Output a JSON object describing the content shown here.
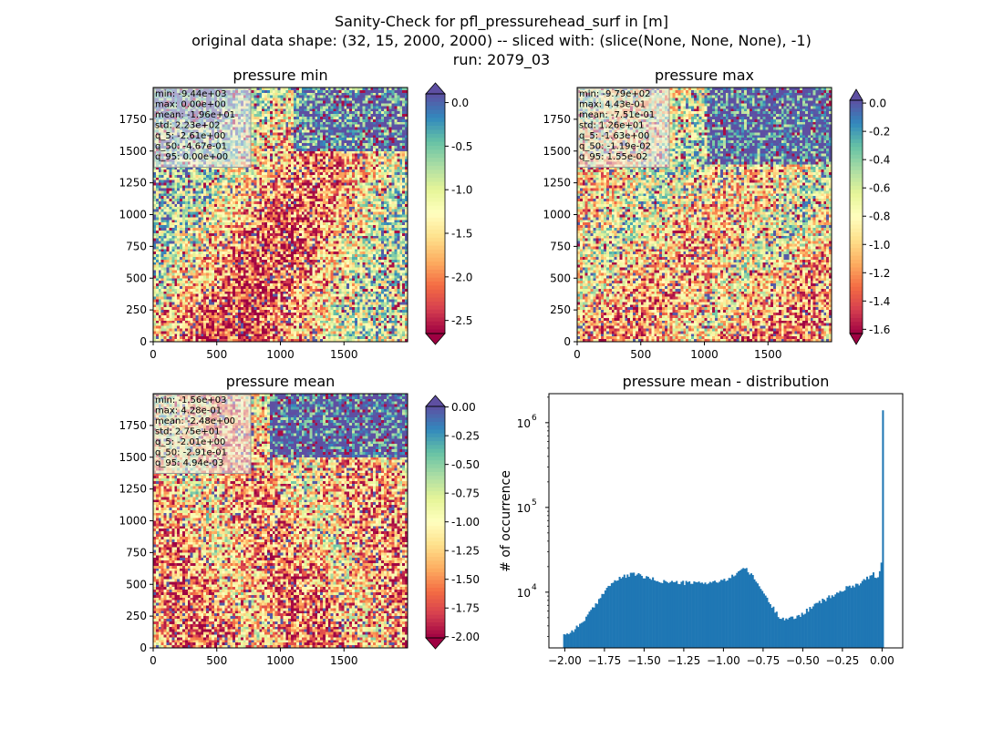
{
  "figure": {
    "title_lines": [
      "Sanity-Check for pfl_pressurehead_surf in [m]",
      "original data shape: (32, 15, 2000, 2000) -- sliced with: (slice(None, None, None), -1)",
      "run: 2079_03"
    ]
  },
  "colors": {
    "cmap": [
      "#9e0142",
      "#d53e4f",
      "#f46d43",
      "#fdae61",
      "#fee08b",
      "#ffffbf",
      "#e6f598",
      "#abdda4",
      "#66c2a5",
      "#3288bd",
      "#5e4fa2"
    ],
    "hist_bar": "#1f77b4",
    "stats_box": "#eeeeee"
  },
  "chart_data": [
    {
      "type": "heatmap",
      "title": "pressure min",
      "xlim": [
        0,
        2000
      ],
      "ylim": [
        0,
        2000
      ],
      "xticks": [
        "0",
        "500",
        "1000",
        "1500"
      ],
      "yticks": [
        "0",
        "250",
        "500",
        "750",
        "1000",
        "1250",
        "1500",
        "1750"
      ],
      "colorbar": {
        "range": [
          -2.65,
          0.1
        ],
        "ticks": [
          "0.0",
          "-0.5",
          "-1.0",
          "-1.5",
          "-2.0",
          "-2.5"
        ],
        "tick_values": [
          0.0,
          -0.5,
          -1.0,
          -1.5,
          -2.0,
          -2.5
        ],
        "extend": "both"
      },
      "stats": [
        "min: -9.44e+03",
        "max: 0.00e+00",
        "mean: -1.96e+01",
        "std: 2.23e+02",
        "q_5: -2.61e+00",
        "q_50: -4.67e-01",
        "q_95: 0.00e+00"
      ]
    },
    {
      "type": "heatmap",
      "title": "pressure max",
      "xlim": [
        0,
        2000
      ],
      "ylim": [
        0,
        2000
      ],
      "xticks": [
        "0",
        "500",
        "1000",
        "1500"
      ],
      "yticks": [
        "0",
        "250",
        "500",
        "750",
        "1000",
        "1250",
        "1500",
        "1750"
      ],
      "colorbar": {
        "range": [
          -1.63,
          0.02
        ],
        "ticks": [
          "0.0",
          "-0.2",
          "-0.4",
          "-0.6",
          "-0.8",
          "-1.0",
          "-1.2",
          "-1.4",
          "-1.6"
        ],
        "tick_values": [
          0.0,
          -0.2,
          -0.4,
          -0.6,
          -0.8,
          -1.0,
          -1.2,
          -1.4,
          -1.6
        ],
        "extend": "both"
      },
      "stats": [
        "min: -9.79e+02",
        "max: 4.43e-01",
        "mean: -7.51e-01",
        "std: 1.26e+01",
        "q_5: -1.63e+00",
        "q_50: -1.19e-02",
        "q_95: 1.55e-02"
      ]
    },
    {
      "type": "heatmap",
      "title": "pressure mean",
      "xlim": [
        0,
        2000
      ],
      "ylim": [
        0,
        2000
      ],
      "xticks": [
        "0",
        "500",
        "1000",
        "1500"
      ],
      "yticks": [
        "0",
        "250",
        "500",
        "750",
        "1000",
        "1250",
        "1500",
        "1750"
      ],
      "colorbar": {
        "range": [
          -2.01,
          0.005
        ],
        "ticks": [
          "0.00",
          "-0.25",
          "-0.50",
          "-0.75",
          "-1.00",
          "-1.25",
          "-1.50",
          "-1.75",
          "-2.00"
        ],
        "tick_values": [
          0.0,
          -0.25,
          -0.5,
          -0.75,
          -1.0,
          -1.25,
          -1.5,
          -1.75,
          -2.0
        ],
        "extend": "both"
      },
      "stats": [
        "min: -1.56e+03",
        "max: 4.28e-01",
        "mean: -2.48e+00",
        "std: 2.75e+01",
        "q_5: -2.01e+00",
        "q_50: -2.91e-01",
        "q_95: 4.94e-03"
      ]
    },
    {
      "type": "bar",
      "title": "pressure mean - distribution",
      "ylabel": "# of occurrence",
      "xlabel": "",
      "yscale": "log",
      "xlim": [
        -2.1,
        0.13
      ],
      "ylim": [
        2200,
        2200000
      ],
      "xticks": [
        -2.0,
        -1.75,
        -1.5,
        -1.25,
        -1.0,
        -0.75,
        -0.5,
        -0.25,
        0.0
      ],
      "xtick_labels": [
        "−2.00",
        "−1.75",
        "−1.50",
        "−1.25",
        "−1.00",
        "−0.75",
        "−0.50",
        "−0.25",
        "0.00"
      ],
      "yticks": [
        10000,
        100000,
        1000000
      ],
      "ytick_labels": [
        [
          "10",
          "4"
        ],
        [
          "10",
          "5"
        ],
        [
          "10",
          "6"
        ]
      ],
      "bins": {
        "start": -2.01,
        "width": 0.01,
        "counts_anchor_x": [
          -2.01,
          -1.98,
          -1.9,
          -1.8,
          -1.75,
          -1.7,
          -1.62,
          -1.55,
          -1.5,
          -1.4,
          -1.3,
          -1.2,
          -1.1,
          -1.0,
          -0.95,
          -0.88,
          -0.85,
          -0.8,
          -0.75,
          -0.7,
          -0.65,
          -0.6,
          -0.55,
          -0.5,
          -0.45,
          -0.4,
          -0.35,
          -0.3,
          -0.25,
          -0.2,
          -0.15,
          -0.1,
          -0.05,
          -0.03,
          -0.01,
          0.0
        ],
        "counts_anchor_y": [
          3300,
          3200,
          4200,
          7200,
          10500,
          13000,
          15500,
          16500,
          15000,
          13500,
          13000,
          12800,
          13000,
          13500,
          15000,
          19500,
          18000,
          14000,
          10000,
          7000,
          5200,
          4800,
          5000,
          5600,
          6500,
          7500,
          8400,
          9300,
          10500,
          11800,
          12500,
          14500,
          16500,
          13500,
          18000,
          27000
        ],
        "spike_value": 1400000
      }
    }
  ]
}
